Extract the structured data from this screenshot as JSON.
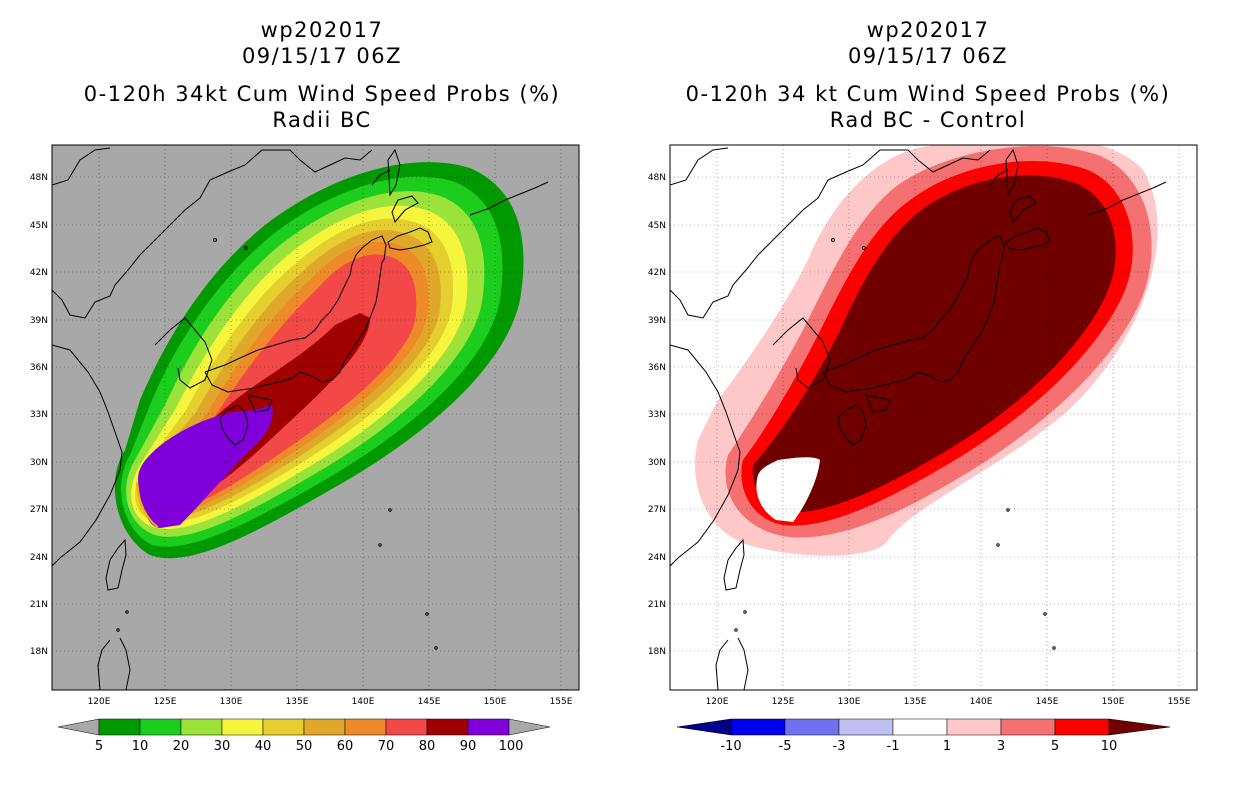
{
  "left": {
    "storm_id": "wp202017",
    "datetime": "09/15/17 06Z",
    "product": "0-120h 34kt Cum Wind Speed Probs (%)",
    "subtitle": "Radii BC",
    "lat_ticks": [
      "48N",
      "45N",
      "42N",
      "39N",
      "36N",
      "33N",
      "30N",
      "27N",
      "24N",
      "21N",
      "18N"
    ],
    "lon_ticks": [
      "120E",
      "125E",
      "130E",
      "135E",
      "140E",
      "145E",
      "150E",
      "155E"
    ],
    "colorbar_labels": [
      "5",
      "10",
      "20",
      "30",
      "40",
      "50",
      "60",
      "70",
      "80",
      "90",
      "100"
    ],
    "colors": {
      "background": "#a8a8a8",
      "p5": "#009a00",
      "p10": "#1dcd1d",
      "p20": "#9be33b",
      "p30": "#f5f53d",
      "p40": "#e4cf2e",
      "p50": "#e0a82a",
      "p60": "#ee8a2a",
      "p70": "#f34848",
      "p80": "#a00000",
      "p90": "#8000dc",
      "p100": "#f0b000"
    }
  },
  "right": {
    "storm_id": "wp202017",
    "datetime": "09/15/17 06Z",
    "product": "0-120h 34 kt Cum Wind Speed Probs (%)",
    "subtitle": "Rad BC - Control",
    "lat_ticks": [
      "48N",
      "45N",
      "42N",
      "39N",
      "36N",
      "33N",
      "30N",
      "27N",
      "24N",
      "21N",
      "18N"
    ],
    "lon_ticks": [
      "120E",
      "125E",
      "130E",
      "135E",
      "140E",
      "145E",
      "150E",
      "155E"
    ],
    "colorbar_labels": [
      "-10",
      "-5",
      "-3",
      "-1",
      "1",
      "3",
      "5",
      "10"
    ],
    "colors": {
      "n10": "#00008c",
      "n5": "#0000f0",
      "n3": "#7070f0",
      "n1": "#c0c0f0",
      "zero": "#ffffff",
      "p1": "#ffc8c8",
      "p3": "#f57070",
      "p5": "#ff0000",
      "p10": "#700000"
    }
  }
}
